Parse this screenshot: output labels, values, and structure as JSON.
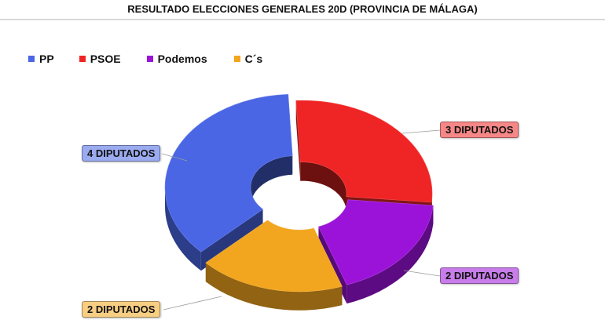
{
  "chart_data": {
    "type": "pie",
    "title": "RESULTADO ELECCIONES GENERALES 20D (PROVINCIA DE MÁLAGA)",
    "legend_position": "top-left",
    "categories": [
      "PP",
      "PSOE",
      "Podemos",
      "C´s"
    ],
    "values": [
      4,
      3,
      2,
      2
    ],
    "colors": [
      "#4a66e4",
      "#ef2424",
      "#9b13d8",
      "#f2a51e"
    ],
    "data_labels": [
      "4 DIPUTADOS",
      "3 DIPUTADOS",
      "2 DIPUTADOS",
      "2 DIPUTADOS"
    ],
    "style": "3d-donut"
  }
}
